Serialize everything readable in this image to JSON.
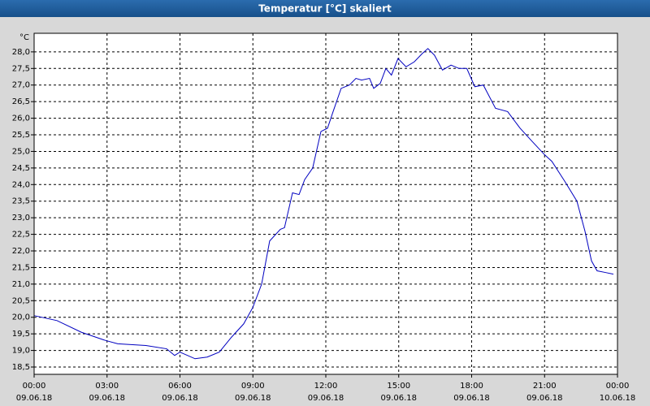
{
  "chart_data": {
    "type": "line",
    "title": "Temperatur [°C] skaliert",
    "y_unit": "°C",
    "x": [
      0,
      0.94,
      1.94,
      2.94,
      3.44,
      4.6,
      5.45,
      5.78,
      6.0,
      6.62,
      7.12,
      7.62,
      8.12,
      8.62,
      9.0,
      9.36,
      9.69,
      10.13,
      10.3,
      10.63,
      10.9,
      11.13,
      11.46,
      11.8,
      12.07,
      12.3,
      12.63,
      12.97,
      13.24,
      13.47,
      13.8,
      13.97,
      14.24,
      14.47,
      14.7,
      14.97,
      15.3,
      15.64,
      15.97,
      16.2,
      16.47,
      16.8,
      17.15,
      17.48,
      17.8,
      18.13,
      18.48,
      18.98,
      19.48,
      19.99,
      20.49,
      21.0,
      21.3,
      21.83,
      22.33,
      22.66,
      22.93,
      23.16,
      23.5,
      23.83
    ],
    "series": [
      {
        "color": "#0000c0",
        "values": [
          20.05,
          19.9,
          19.55,
          19.3,
          19.2,
          19.15,
          19.05,
          18.85,
          18.95,
          18.75,
          18.8,
          18.95,
          19.4,
          19.8,
          20.3,
          21.0,
          22.3,
          22.65,
          22.7,
          23.75,
          23.7,
          24.15,
          24.5,
          25.6,
          25.7,
          26.2,
          26.9,
          27.0,
          27.2,
          27.15,
          27.2,
          26.9,
          27.05,
          27.5,
          27.3,
          27.8,
          27.55,
          27.7,
          27.95,
          28.1,
          27.9,
          27.45,
          27.6,
          27.5,
          27.5,
          26.95,
          27.0,
          26.3,
          26.2,
          25.7,
          25.3,
          24.9,
          24.7,
          24.1,
          23.5,
          22.6,
          21.7,
          21.4,
          21.35,
          21.3
        ]
      }
    ],
    "xlim": [
      0,
      24
    ],
    "ylim": [
      18.28,
      28.56
    ],
    "xticks": [
      {
        "value": 0,
        "label": "00:00",
        "date": "09.06.18"
      },
      {
        "value": 3,
        "label": "03:00",
        "date": "09.06.18"
      },
      {
        "value": 6,
        "label": "06:00",
        "date": "09.06.18"
      },
      {
        "value": 9,
        "label": "09:00",
        "date": "09.06.18"
      },
      {
        "value": 12,
        "label": "12:00",
        "date": "09.06.18"
      },
      {
        "value": 15,
        "label": "15:00",
        "date": "09.06.18"
      },
      {
        "value": 18,
        "label": "18:00",
        "date": "09.06.18"
      },
      {
        "value": 21,
        "label": "21:00",
        "date": "09.06.18"
      },
      {
        "value": 24,
        "label": "00:00",
        "date": "10.06.18"
      }
    ],
    "yticks": [
      {
        "value": 18.5,
        "label": "18,5"
      },
      {
        "value": 19,
        "label": "19,0"
      },
      {
        "value": 19.5,
        "label": "19,5"
      },
      {
        "value": 20,
        "label": "20,0"
      },
      {
        "value": 20.5,
        "label": "20,5"
      },
      {
        "value": 21,
        "label": "21,0"
      },
      {
        "value": 21.5,
        "label": "21,5"
      },
      {
        "value": 22,
        "label": "22,0"
      },
      {
        "value": 22.5,
        "label": "22,5"
      },
      {
        "value": 23,
        "label": "23,0"
      },
      {
        "value": 23.5,
        "label": "23,5"
      },
      {
        "value": 24,
        "label": "24,0"
      },
      {
        "value": 24.5,
        "label": "24,5"
      },
      {
        "value": 25,
        "label": "25,0"
      },
      {
        "value": 25.5,
        "label": "25,5"
      },
      {
        "value": 26,
        "label": "26,0"
      },
      {
        "value": 26.5,
        "label": "26,5"
      },
      {
        "value": 27,
        "label": "27,0"
      },
      {
        "value": 27.5,
        "label": "27,5"
      },
      {
        "value": 28,
        "label": "28,0"
      }
    ],
    "grid": true
  }
}
